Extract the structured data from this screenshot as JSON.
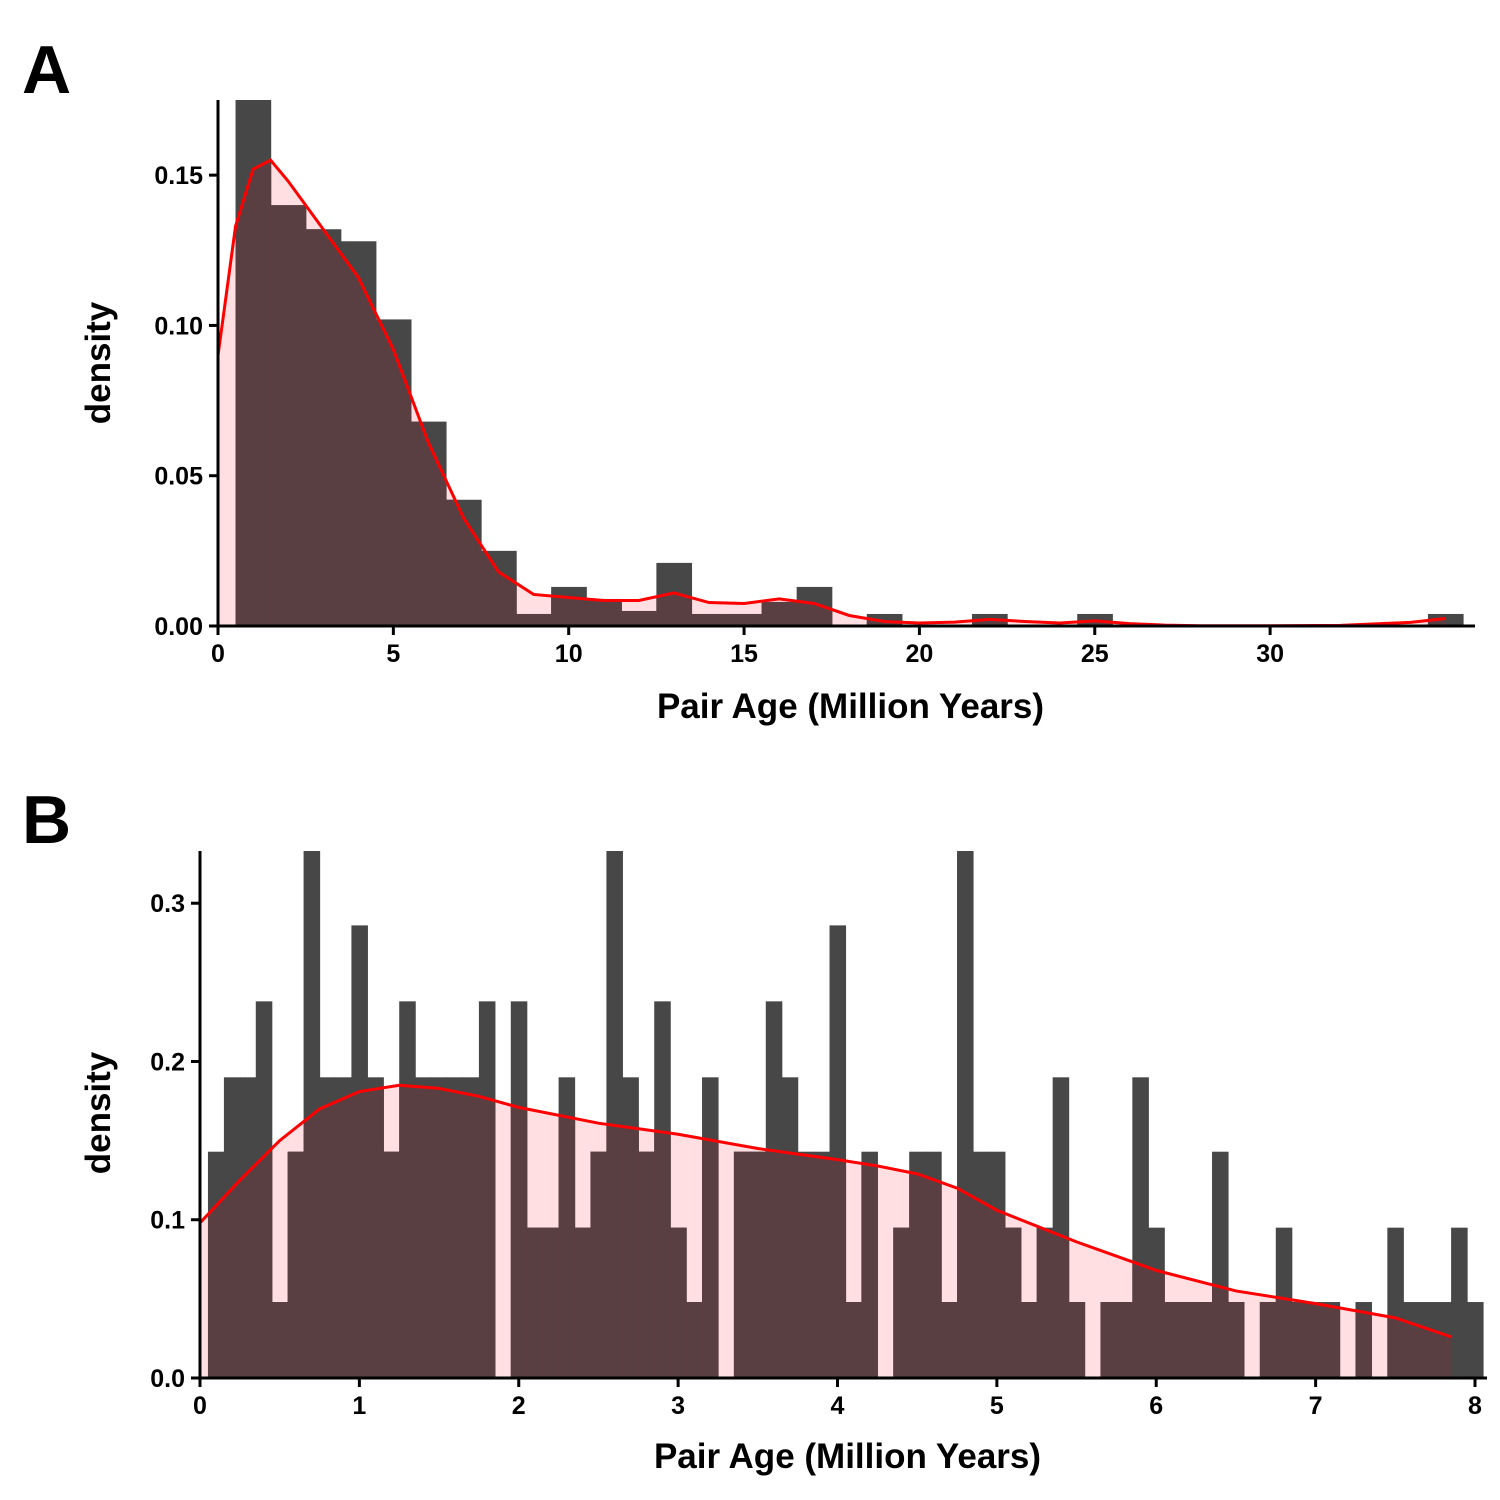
{
  "colors": {
    "bar": "#474747",
    "density_fill": "#ffdfe2",
    "density_line": "#ff0000",
    "overlap": "#5a3f42"
  },
  "chart_data": [
    {
      "panel_label": "A",
      "type": "bar",
      "overlay": "density",
      "xlabel": "Pair Age (Million Years)",
      "ylabel": "density",
      "xlim": [
        0,
        35.5
      ],
      "ylim": [
        0,
        0.175
      ],
      "xticks": [
        0,
        5,
        10,
        15,
        20,
        25,
        30
      ],
      "xtick_labels": [
        "0",
        "5",
        "10",
        "15",
        "20",
        "25",
        "30"
      ],
      "yticks": [
        0,
        0.05,
        0.1,
        0.15
      ],
      "ytick_labels": [
        "0.00",
        "0.05",
        "0.10",
        "0.15"
      ],
      "bin_start": 0.5,
      "bin_width": 1,
      "values": [
        0.175,
        0.14,
        0.132,
        0.128,
        0.102,
        0.068,
        0.042,
        0.025,
        0.004,
        0.013,
        0.009,
        0.005,
        0.021,
        0.004,
        0.004,
        0.008,
        0.013,
        0,
        0.004,
        0,
        0,
        0.004,
        0,
        0,
        0.004,
        0,
        0,
        0,
        0,
        0,
        0,
        0,
        0,
        0,
        0.004
      ],
      "density": {
        "x": [
          0,
          0.5,
          1,
          1.5,
          2,
          3,
          4,
          5,
          6,
          7,
          8,
          9,
          10,
          11,
          12,
          13,
          14,
          15,
          16,
          17,
          18,
          19,
          20,
          21,
          22,
          23,
          24,
          25,
          26,
          27,
          28,
          30,
          32,
          34,
          35
        ],
        "y": [
          0.09,
          0.133,
          0.152,
          0.155,
          0.148,
          0.132,
          0.116,
          0.092,
          0.061,
          0.036,
          0.018,
          0.0105,
          0.0095,
          0.0085,
          0.0085,
          0.011,
          0.0078,
          0.0075,
          0.009,
          0.0075,
          0.0035,
          0.0015,
          0.001,
          0.0013,
          0.0022,
          0.0015,
          0.001,
          0.0017,
          0.0008,
          0.0003,
          0.0001,
          0.0001,
          0.0002,
          0.0012,
          0.0025
        ]
      }
    },
    {
      "panel_label": "B",
      "type": "bar",
      "overlay": "density",
      "xlabel": "Pair Age (Million Years)",
      "ylabel": "density",
      "xlim": [
        0,
        8
      ],
      "ylim": [
        0,
        0.333
      ],
      "xticks": [
        0,
        1,
        2,
        3,
        4,
        5,
        6,
        7,
        8
      ],
      "xtick_labels": [
        "0",
        "1",
        "2",
        "3",
        "4",
        "5",
        "6",
        "7",
        "8"
      ],
      "yticks": [
        0,
        0.1,
        0.2,
        0.3
      ],
      "ytick_labels": [
        "0.0",
        "0.1",
        "0.2",
        "0.3"
      ],
      "bin_start": 0.05,
      "bin_width": 0.1,
      "values": [
        0.143,
        0.19,
        0.19,
        0.238,
        0.048,
        0.143,
        0.333,
        0.19,
        0.19,
        0.286,
        0.19,
        0.143,
        0.238,
        0.19,
        0.19,
        0.19,
        0.19,
        0.238,
        0,
        0.238,
        0.095,
        0.095,
        0.19,
        0.095,
        0.143,
        0.333,
        0.19,
        0.143,
        0.238,
        0.095,
        0.048,
        0.19,
        0,
        0.143,
        0.143,
        0.238,
        0.19,
        0.143,
        0.143,
        0.286,
        0.048,
        0.143,
        0,
        0.095,
        0.143,
        0.143,
        0.048,
        0.333,
        0.143,
        0.143,
        0.095,
        0.048,
        0.095,
        0.19,
        0.048,
        0,
        0.048,
        0.048,
        0.19,
        0.095,
        0.048,
        0.048,
        0.048,
        0.143,
        0.048,
        0,
        0.048,
        0.095,
        0.048,
        0.048,
        0.048,
        0,
        0.048,
        0,
        0.095,
        0.048,
        0.048,
        0.048,
        0.095,
        0.048
      ],
      "density": {
        "x": [
          0,
          0.25,
          0.5,
          0.75,
          1,
          1.25,
          1.5,
          1.75,
          2,
          2.5,
          3,
          3.5,
          4,
          4.25,
          4.5,
          4.75,
          5,
          5.5,
          6,
          6.5,
          7,
          7.5,
          7.85
        ],
        "y": [
          0.098,
          0.125,
          0.15,
          0.17,
          0.181,
          0.185,
          0.183,
          0.178,
          0.171,
          0.161,
          0.154,
          0.145,
          0.138,
          0.134,
          0.129,
          0.12,
          0.106,
          0.086,
          0.068,
          0.055,
          0.047,
          0.038,
          0.026
        ]
      }
    }
  ]
}
